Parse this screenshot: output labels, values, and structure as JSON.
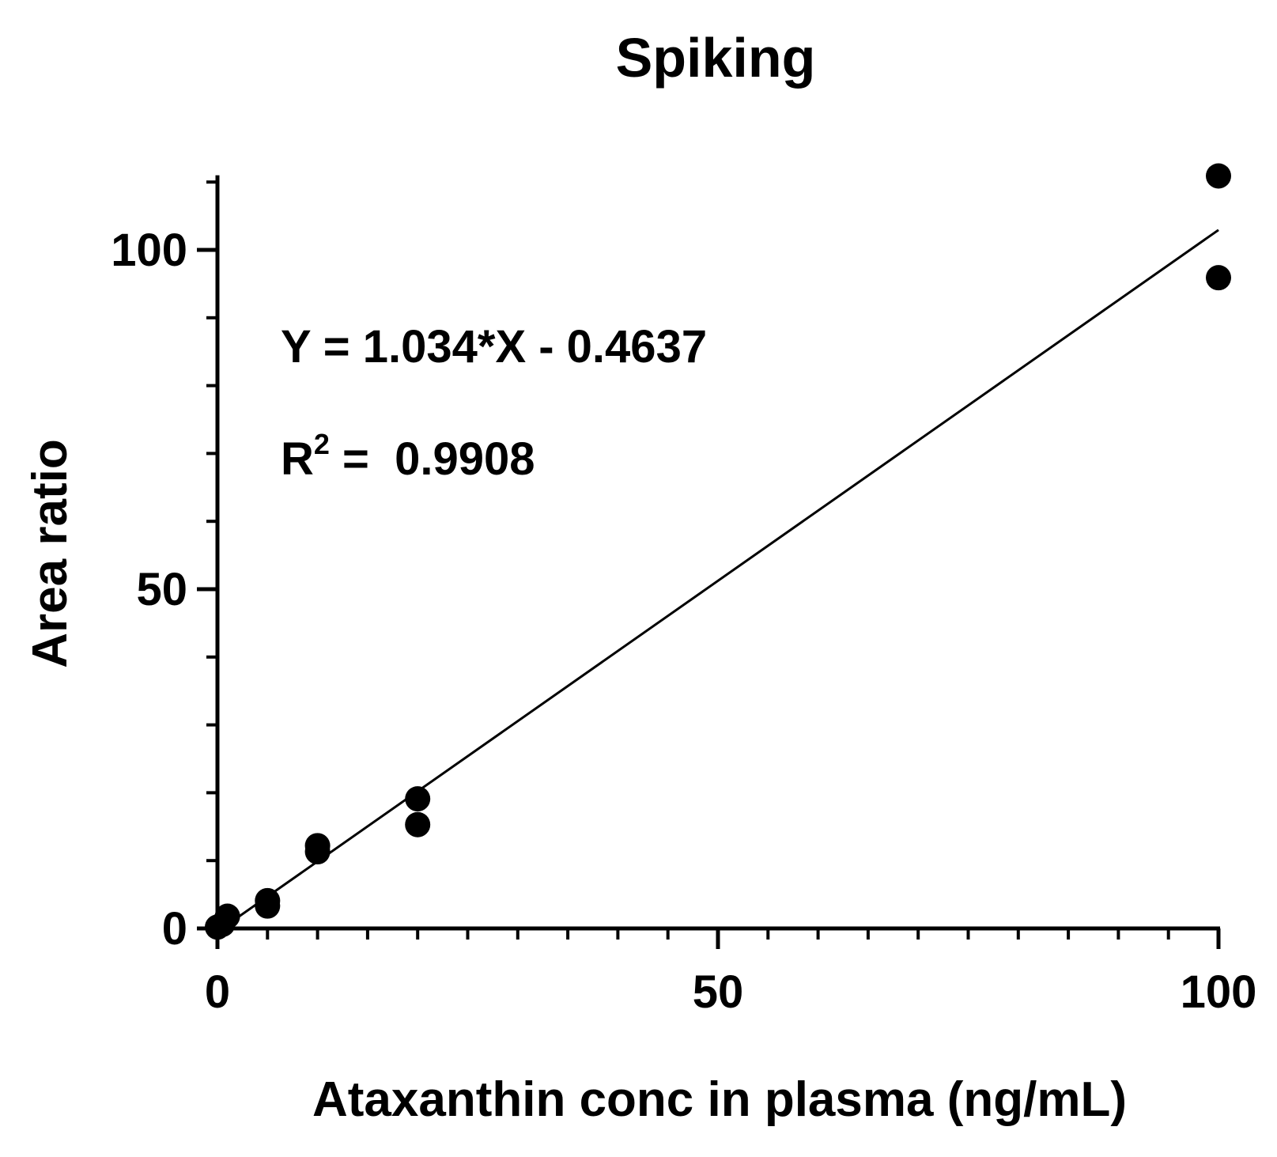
{
  "chart_data": {
    "type": "scatter",
    "title": "Spiking",
    "xlabel": "Ataxanthin conc in plasma (ng/mL)",
    "ylabel": "Area ratio",
    "xlim": [
      0,
      100
    ],
    "ylim": [
      0,
      111
    ],
    "x_ticks": [
      0,
      50,
      100
    ],
    "y_ticks": [
      0,
      50,
      100
    ],
    "x_minor_step": 5,
    "y_minor_step": 10,
    "grid": false,
    "series": [
      {
        "points": [
          {
            "x": 0,
            "y": 0.2
          },
          {
            "x": 0.5,
            "y": 0.6
          },
          {
            "x": 1,
            "y": 1.8
          },
          {
            "x": 5,
            "y": 3.3
          },
          {
            "x": 5,
            "y": 4.1
          },
          {
            "x": 10,
            "y": 11.3
          },
          {
            "x": 10,
            "y": 12.2
          },
          {
            "x": 20,
            "y": 15.3
          },
          {
            "x": 20,
            "y": 19.1
          },
          {
            "x": 100,
            "y": 95.9
          },
          {
            "x": 100,
            "y": 110.9
          }
        ]
      }
    ],
    "fit_line": {
      "slope": 1.034,
      "intercept": -0.4637,
      "x_range": [
        0,
        100
      ]
    },
    "annotations": {
      "equation": "Y = 1.034*X - 0.4637",
      "r2_base": "R",
      "r2_exp": "2",
      "r2_rest": " =  0.9908"
    }
  }
}
